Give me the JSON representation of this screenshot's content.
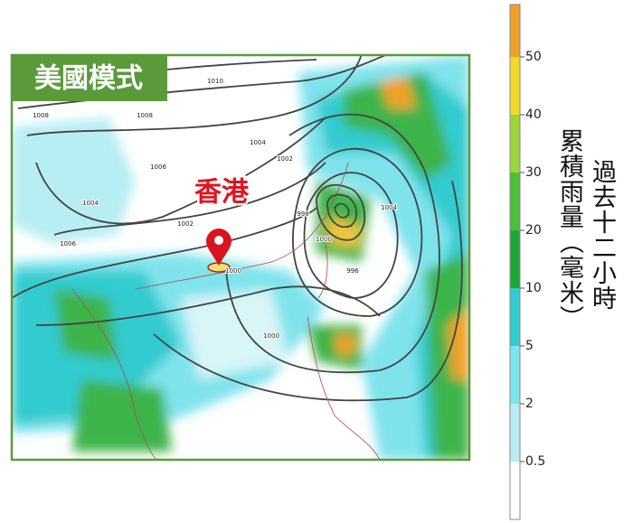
{
  "badge": "美國模式",
  "marker_label": "香港",
  "legend": {
    "title_lines": [
      "過去十二小時",
      "累積雨量（毫米）"
    ],
    "ticks": [
      0.5,
      2,
      5,
      10,
      20,
      30,
      40,
      50
    ]
  },
  "isobar_labels": [
    "1010",
    "1008",
    "1008",
    "1006",
    "1006",
    "1004",
    "1004",
    "1002",
    "1002",
    "1000",
    "1000",
    "998",
    "996",
    "1000",
    "1004"
  ]
}
